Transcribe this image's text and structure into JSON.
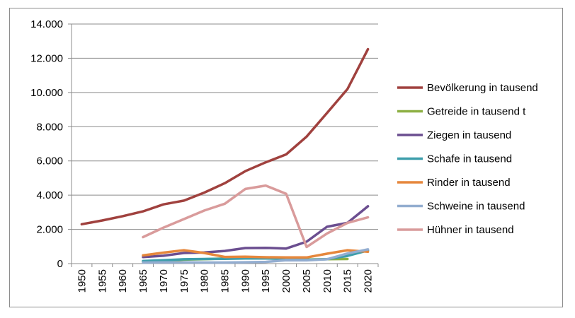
{
  "chart_data": {
    "type": "line",
    "title": "",
    "xlabel": "",
    "ylabel": "",
    "ylim": [
      0,
      14000
    ],
    "yticks": [
      0,
      2000,
      4000,
      6000,
      8000,
      10000,
      12000,
      14000
    ],
    "ytick_labels": [
      "0",
      "2.000",
      "4.000",
      "6.000",
      "8.000",
      "10.000",
      "12.000",
      "14.000"
    ],
    "categories": [
      "1950",
      "1955",
      "1960",
      "1965",
      "1970",
      "1975",
      "1980",
      "1985",
      "1990",
      "1995",
      "2000",
      "2005",
      "2010",
      "2015",
      "2020"
    ],
    "grid": "horizontal",
    "legend_position": "right",
    "series": [
      {
        "name": "Bevölkerung in tausend",
        "color": "#a0413e",
        "values": [
          2300,
          2520,
          2770,
          3050,
          3460,
          3680,
          4150,
          4700,
          5400,
          5920,
          6380,
          7420,
          8800,
          10200,
          12530
        ]
      },
      {
        "name": "Getreide in tausend t",
        "color": "#8db043",
        "values": [
          null,
          null,
          null,
          120,
          160,
          230,
          260,
          300,
          330,
          320,
          300,
          240,
          260,
          270,
          null
        ]
      },
      {
        "name": "Ziegen in tausend",
        "color": "#6b4e90",
        "values": [
          null,
          null,
          null,
          380,
          460,
          620,
          650,
          740,
          910,
          920,
          880,
          1280,
          2150,
          2380,
          3350
        ]
      },
      {
        "name": "Schafe in tausend",
        "color": "#3d9eab",
        "values": [
          null,
          null,
          null,
          150,
          200,
          250,
          270,
          280,
          300,
          300,
          270,
          220,
          260,
          450,
          770
        ]
      },
      {
        "name": "Rinder in tausend",
        "color": "#e6873c",
        "values": [
          null,
          null,
          null,
          480,
          640,
          780,
          620,
          390,
          400,
          370,
          360,
          360,
          580,
          780,
          690
        ]
      },
      {
        "name": "Schweine in tausend",
        "color": "#93add0",
        "values": [
          null,
          null,
          null,
          60,
          70,
          70,
          60,
          60,
          80,
          100,
          200,
          190,
          250,
          590,
          830
        ]
      },
      {
        "name": "Hühner in tausend",
        "color": "#d99b9b",
        "values": [
          null,
          null,
          null,
          1550,
          2100,
          2600,
          3100,
          3500,
          4360,
          4560,
          4080,
          970,
          1760,
          2380,
          2700
        ]
      }
    ]
  }
}
